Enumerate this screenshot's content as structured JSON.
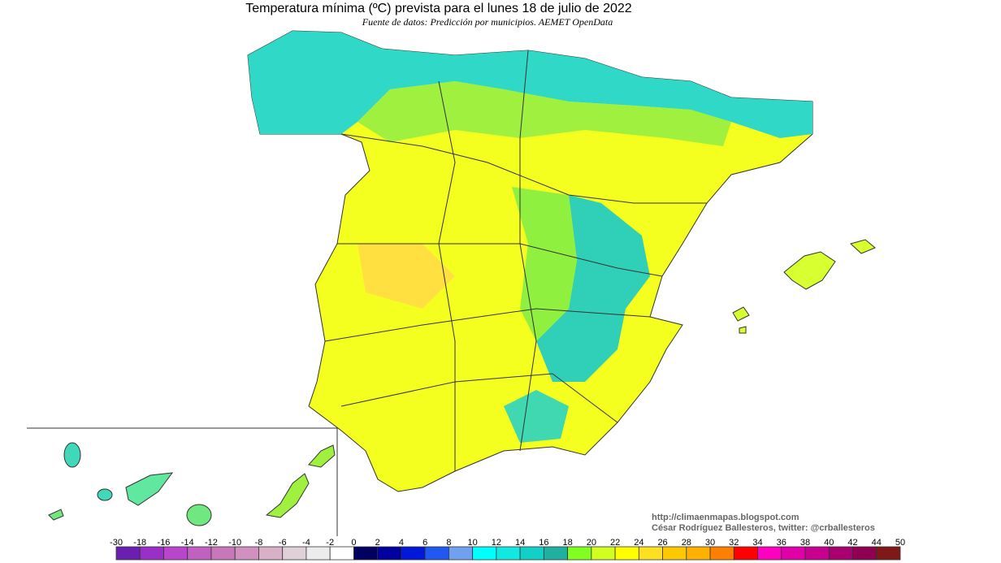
{
  "map": {
    "title": "Temperatura mínima (ºC) prevista para el lunes 18 de julio de 2022",
    "source": "Fuente de datos: Predicción por municipios. AEMET OpenData",
    "credits": [
      "http://climaenmapas.blogspot.com",
      "César Rodríguez Ballesteros, twitter: @crballesteros"
    ],
    "legend": {
      "labels": [
        -30,
        -18,
        -16,
        -14,
        -12,
        -10,
        -8,
        -6,
        -4,
        -2,
        0,
        2,
        4,
        6,
        8,
        10,
        12,
        14,
        16,
        18,
        20,
        22,
        24,
        26,
        28,
        30,
        32,
        34,
        36,
        38,
        40,
        42,
        44,
        50
      ],
      "colors": [
        "#6a1fb0",
        "#9a2fc8",
        "#b845cc",
        "#c060c0",
        "#c878b8",
        "#d090c0",
        "#d8b0c8",
        "#e0d0d8",
        "#ececec",
        "#ffffff",
        "#000060",
        "#0000a0",
        "#0018d8",
        "#2058f0",
        "#70a0f0",
        "#00ffff",
        "#10e8e0",
        "#10d0c8",
        "#20b0a0",
        "#80ff20",
        "#d0ff20",
        "#ffff00",
        "#ffe020",
        "#ffc800",
        "#ffb000",
        "#ff8000",
        "#ff0000",
        "#ff00c0",
        "#e000a8",
        "#c80090",
        "#a80070",
        "#900050",
        "#801818"
      ]
    }
  }
}
